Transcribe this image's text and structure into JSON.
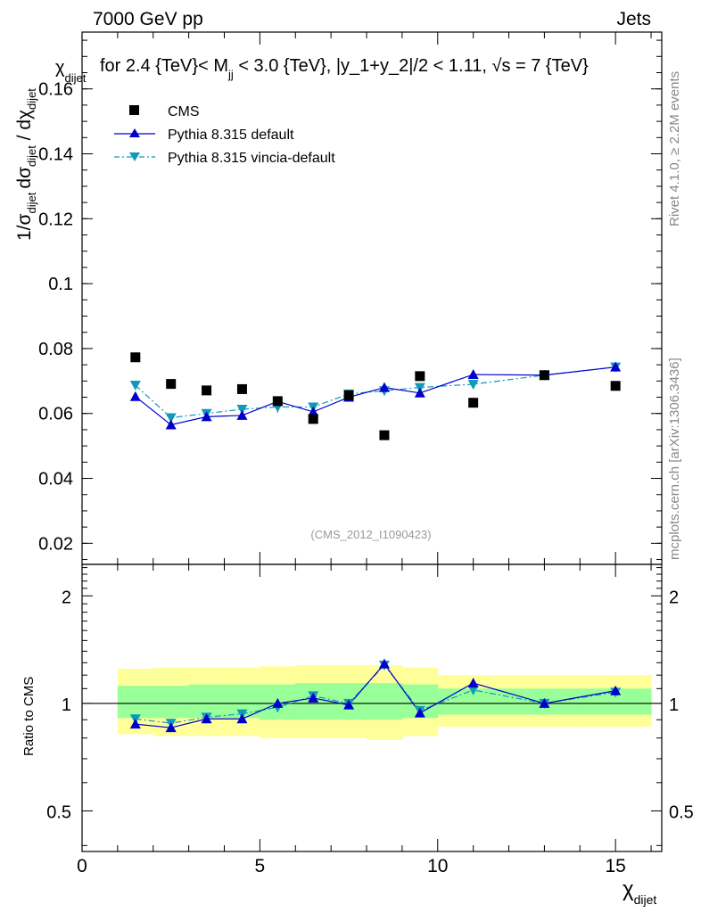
{
  "header": {
    "left": "7000 GeV pp",
    "right": "Jets"
  },
  "title_parts": {
    "prefix": "for 2.4 {TeV}< M",
    "sub": "jj",
    "middle": " < 3.0 {TeV}, |y_1+y_2|/2 < 1.11, ",
    "sqrt": "√",
    "suffix": "s = 7 {TeV}"
  },
  "side_labels": {
    "rivet": "Rivet 4.1.0, ≥ 2.2M events",
    "mcplots": "mcplots.cern.ch [arXiv:1306.3436]"
  },
  "watermark": "(CMS_2012_I1090423)",
  "axis_text": {
    "y_main_chi": "χ",
    "y_main_chi_sub": "dijet",
    "y_main_prefix": "1/σ",
    "y_main_sigma_sub": "dijet",
    "y_main_dsigma": "dσ",
    "y_main_dsigma_sub": "dijet",
    "y_main_slash": " / dχ",
    "y_main_dchi_sub": "dijet",
    "ratio_ylabel": "Ratio to CMS",
    "x_chi": "χ",
    "x_chi_sub": "dijet"
  },
  "legend": [
    {
      "name": "CMS",
      "color": "#000000",
      "marker": "square"
    },
    {
      "name": "Pythia 8.315 default",
      "color": "#0000cc",
      "marker": "triangle-up"
    },
    {
      "name": "Pythia 8.315 vincia-default",
      "color": "#1199bb",
      "marker": "triangle-down"
    }
  ],
  "chart_data": {
    "type": "scatter",
    "x_edges": [
      1,
      2,
      3,
      4,
      5,
      6,
      7,
      8,
      9,
      10,
      12,
      14,
      16
    ],
    "x": [
      1.5,
      2.5,
      3.5,
      4.5,
      5.5,
      6.5,
      7.5,
      8.5,
      9.5,
      11,
      13,
      15
    ],
    "xlim": [
      0,
      16.3
    ],
    "x_ticks": [
      0,
      5,
      10,
      15
    ],
    "main": {
      "ylim": [
        0.0135,
        0.1775
      ],
      "y_ticks": [
        0.02,
        0.04,
        0.06,
        0.08,
        0.1,
        0.12,
        0.14,
        0.16
      ],
      "y_tick_labels": [
        "0.02",
        "0.04",
        "0.06",
        "0.08",
        "0.1",
        "0.12",
        "0.14",
        "0.16"
      ],
      "series": [
        {
          "name": "CMS",
          "values": [
            0.0773,
            0.0691,
            0.0671,
            0.0675,
            0.0638,
            0.0583,
            0.0656,
            0.0533,
            0.0715,
            0.0633,
            0.0718,
            0.0685
          ]
        },
        {
          "name": "Pythia 8.315 default",
          "values": [
            0.0652,
            0.0565,
            0.059,
            0.0594,
            0.0637,
            0.0605,
            0.065,
            0.068,
            0.0663,
            0.072,
            0.0718,
            0.0743
          ],
          "errors": [
            0.001,
            0.0008,
            0.0008,
            0.0008,
            0.001,
            0.001,
            0.001,
            0.0012,
            0.001,
            0.0006,
            0.0006,
            0.0006
          ]
        },
        {
          "name": "Pythia 8.315 vincia-default",
          "values": [
            0.0687,
            0.0587,
            0.06,
            0.0613,
            0.062,
            0.062,
            0.066,
            0.067,
            0.068,
            0.069,
            0.0718,
            0.0743
          ],
          "errors": [
            0.001,
            0.0008,
            0.0008,
            0.0008,
            0.0018,
            0.001,
            0.001,
            0.0015,
            0.001,
            0.0006,
            0.0006,
            0.0006
          ]
        }
      ]
    },
    "ratio": {
      "ylim": [
        0.385,
        2.45
      ],
      "log": true,
      "y_ticks": [
        0.5,
        1,
        2
      ],
      "y_tick_labels": [
        "0.5",
        "1",
        "2"
      ],
      "band_inner": [
        [
          0.91,
          1.12
        ],
        [
          0.91,
          1.12
        ],
        [
          0.91,
          1.13
        ],
        [
          0.91,
          1.13
        ],
        [
          0.9,
          1.13
        ],
        [
          0.9,
          1.14
        ],
        [
          0.9,
          1.14
        ],
        [
          0.9,
          1.14
        ],
        [
          0.91,
          1.13
        ],
        [
          0.93,
          1.1
        ],
        [
          0.93,
          1.1
        ],
        [
          0.93,
          1.1
        ]
      ],
      "band_outer": [
        [
          0.82,
          1.25
        ],
        [
          0.81,
          1.26
        ],
        [
          0.81,
          1.26
        ],
        [
          0.81,
          1.26
        ],
        [
          0.8,
          1.27
        ],
        [
          0.8,
          1.28
        ],
        [
          0.8,
          1.28
        ],
        [
          0.79,
          1.28
        ],
        [
          0.81,
          1.26
        ],
        [
          0.86,
          1.2
        ],
        [
          0.86,
          1.2
        ],
        [
          0.86,
          1.2
        ]
      ],
      "series": [
        {
          "name": "Pythia 8.315 default",
          "values": [
            0.875,
            0.855,
            0.905,
            0.905,
            1.0,
            1.035,
            0.99,
            1.29,
            0.94,
            1.14,
            1.0,
            1.085
          ]
        },
        {
          "name": "Pythia 8.315 vincia-default",
          "values": [
            0.905,
            0.88,
            0.915,
            0.935,
            0.975,
            1.05,
            1.0,
            1.28,
            0.955,
            1.09,
            1.0,
            1.075
          ]
        }
      ]
    }
  }
}
